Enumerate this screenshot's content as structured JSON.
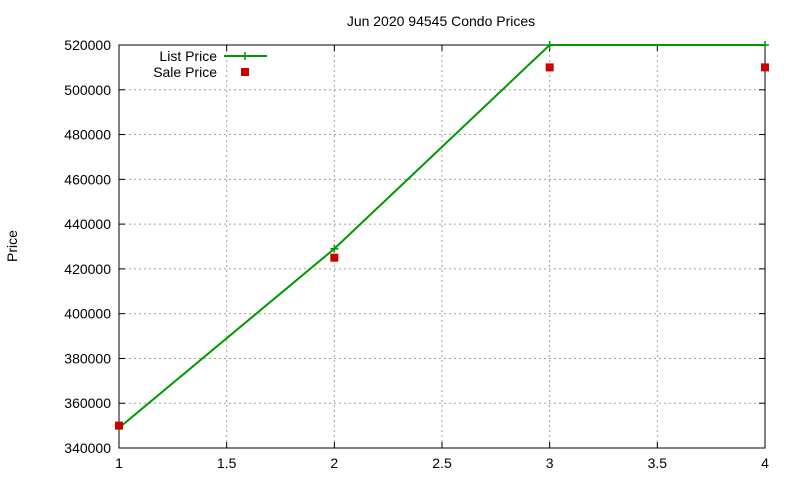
{
  "chart_data": {
    "type": "line",
    "title": "Jun 2020 94545 Condo Prices",
    "xlabel": "",
    "ylabel": "Price",
    "x": [
      1,
      2,
      3,
      4
    ],
    "xlim": [
      1,
      4
    ],
    "ylim": [
      340000,
      520000
    ],
    "x_ticks": [
      "1",
      "1.5",
      "2",
      "2.5",
      "3",
      "3.5",
      "4"
    ],
    "y_ticks": [
      "340000",
      "360000",
      "380000",
      "400000",
      "420000",
      "440000",
      "460000",
      "480000",
      "500000",
      "520000"
    ],
    "grid": true,
    "legend_position": "top-left",
    "series": [
      {
        "name": "List Price",
        "style": "line-plus",
        "color": "#009900",
        "values": [
          349000,
          429000,
          520000,
          520000
        ]
      },
      {
        "name": "Sale Price",
        "style": "square",
        "color": "#cc0000",
        "values": [
          350000,
          425000,
          510000,
          510000
        ]
      }
    ]
  }
}
